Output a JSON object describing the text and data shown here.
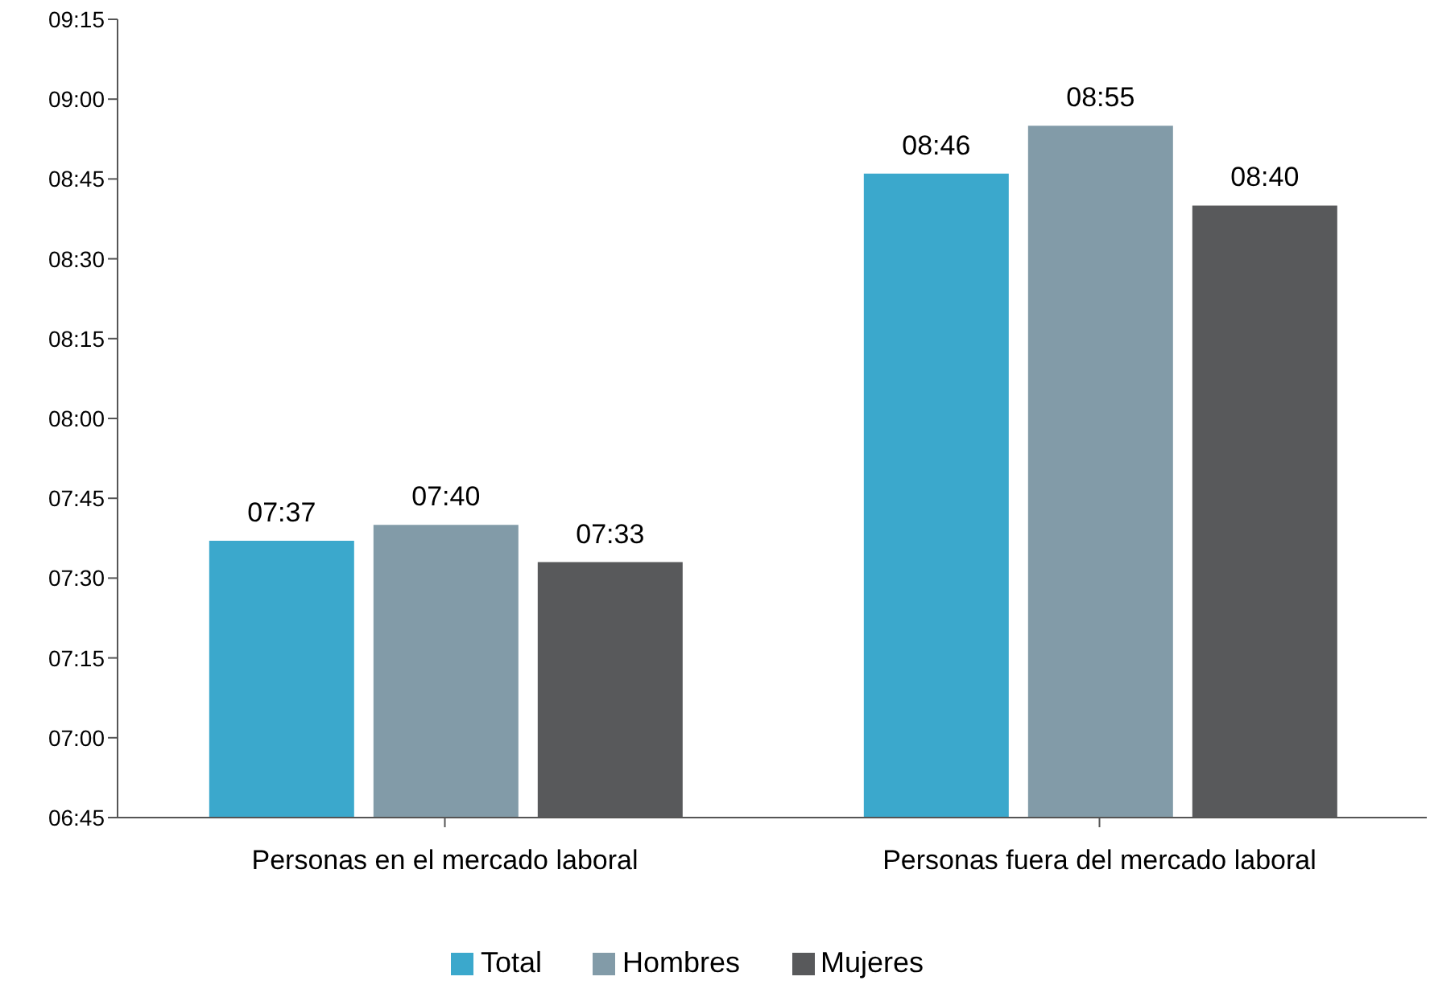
{
  "chart_data": {
    "type": "bar",
    "categories": [
      "Personas en el mercado laboral",
      "Personas fuera del mercado laboral"
    ],
    "series": [
      {
        "name": "Total",
        "color": "#3ba8cc",
        "values": [
          7.6167,
          8.7667
        ],
        "value_labels": [
          "07:37",
          "08:46"
        ]
      },
      {
        "name": "Hombres",
        "color": "#829ba8",
        "values": [
          7.6667,
          8.9167
        ],
        "value_labels": [
          "07:40",
          "08:55"
        ]
      },
      {
        "name": "Mujeres",
        "color": "#58595b",
        "values": [
          7.55,
          8.6667
        ],
        "value_labels": [
          "07:33",
          "08:40"
        ]
      }
    ],
    "ylim": [
      6.75,
      9.25
    ],
    "yticks": [
      {
        "value": 6.75,
        "label": "06:45"
      },
      {
        "value": 7,
        "label": "07:00"
      },
      {
        "value": 7.25,
        "label": "07:15"
      },
      {
        "value": 7.5,
        "label": "07:30"
      },
      {
        "value": 7.75,
        "label": "07:45"
      },
      {
        "value": 8,
        "label": "08:00"
      },
      {
        "value": 8.25,
        "label": "08:15"
      },
      {
        "value": 8.5,
        "label": "08:30"
      },
      {
        "value": 8.75,
        "label": "08:45"
      },
      {
        "value": 9,
        "label": "09:00"
      },
      {
        "value": 9.25,
        "label": "09:15"
      }
    ],
    "grid": false,
    "legend": "bottom"
  }
}
